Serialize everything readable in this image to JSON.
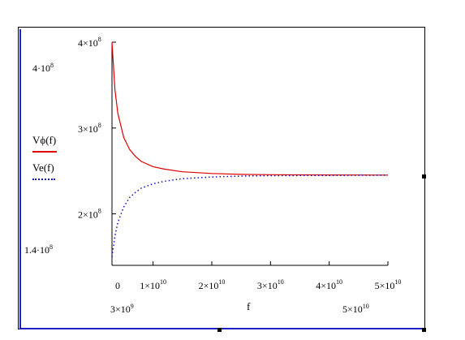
{
  "outer_labels": {
    "y_top": "4·10",
    "y_top_exp": "8",
    "y_bottom": "1.4·10",
    "y_bottom_exp": "8",
    "x_left": "3×10",
    "x_left_exp": "9",
    "x_right": "5×10",
    "x_right_exp": "10"
  },
  "chart_data": {
    "type": "line",
    "xlabel": "f",
    "ylabel": "",
    "xlim": [
      3000000000,
      50000000000
    ],
    "ylim": [
      140000000,
      400000000
    ],
    "x_ticks": [
      {
        "value": 0,
        "base": "0",
        "exp": ""
      },
      {
        "value": 10000000000,
        "base": "1×10",
        "exp": "10"
      },
      {
        "value": 20000000000,
        "base": "2×10",
        "exp": "10"
      },
      {
        "value": 30000000000,
        "base": "3×10",
        "exp": "10"
      },
      {
        "value": 40000000000,
        "base": "4×10",
        "exp": "10"
      },
      {
        "value": 50000000000,
        "base": "5×10",
        "exp": "10"
      }
    ],
    "y_ticks": [
      {
        "value": 400000000,
        "base": "4×10",
        "exp": "8"
      },
      {
        "value": 300000000,
        "base": "3×10",
        "exp": "8"
      },
      {
        "value": 200000000,
        "base": "2×10",
        "exp": "8"
      }
    ],
    "series": [
      {
        "name": "Vϕ(f)",
        "color": "#e00000",
        "style": "solid",
        "x": [
          3000000000,
          3500000000,
          4000000000,
          5000000000,
          6000000000,
          7000000000,
          8000000000,
          10000000000,
          12000000000,
          15000000000,
          20000000000,
          25000000000,
          30000000000,
          35000000000,
          40000000000,
          45000000000,
          50000000000
        ],
        "y": [
          400000000,
          345000000,
          317000000,
          289000000,
          275000000,
          267000000,
          261000000,
          255000000,
          252000000,
          249000000,
          247000000,
          246000000,
          245600000,
          245400000,
          245300000,
          245200000,
          245100000
        ]
      },
      {
        "name": "Ve(f)",
        "color": "#1010c0",
        "style": "dotted",
        "x": [
          3000000000,
          3500000000,
          4000000000,
          5000000000,
          6000000000,
          7000000000,
          8000000000,
          10000000000,
          12000000000,
          15000000000,
          20000000000,
          25000000000,
          30000000000,
          35000000000,
          40000000000,
          45000000000,
          50000000000
        ],
        "y": [
          150000000,
          174000000,
          190000000,
          208000000,
          219000000,
          225000000,
          230000000,
          235000000,
          238000000,
          241000000,
          243000000,
          244000000,
          244500000,
          244700000,
          244800000,
          244900000,
          245000000
        ]
      }
    ]
  }
}
